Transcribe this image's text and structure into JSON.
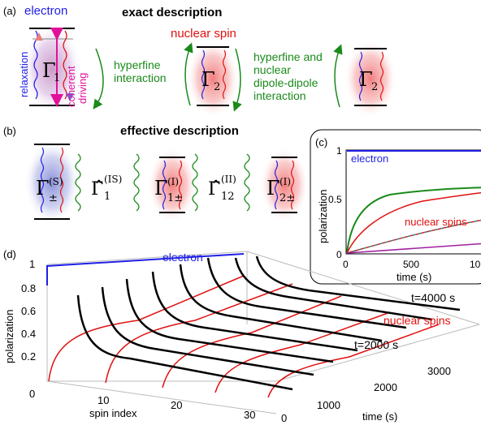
{
  "panel_a": {
    "tag": "(a)",
    "title": "exact description",
    "electron_label": "electron",
    "nuclear_spin_label": "nuclear spin",
    "relaxation_label": "relaxation",
    "coherent_driving_label_1": "coherent",
    "coherent_driving_label_2": "driving",
    "gamma_1": "Γ",
    "gamma_1_sub": "1",
    "gamma_2a": "Γ",
    "gamma_2a_sub": "2",
    "gamma_2b": "Γ",
    "gamma_2b_sub": "2",
    "hyperfine_1": "hyperfine",
    "hyperfine_2": "interaction",
    "hfd_1": "hyperfine and",
    "hfd_2": "nuclear",
    "hfd_3": "dipole-dipole",
    "hfd_4": "interaction"
  },
  "panel_b": {
    "tag": "(b)",
    "title": "effective description",
    "gamma_s": "Γ",
    "gamma_s_sub": "±",
    "gamma_s_sup": "(S)",
    "gamma_is": "Γ̂",
    "gamma_is_sub": "1",
    "gamma_is_sup": "(IS)",
    "gamma_1i": "Γ",
    "gamma_1i_sub": "1±",
    "gamma_1i_sup": "(I)",
    "gamma_ii": "Γ̂",
    "gamma_ii_sub": "12",
    "gamma_ii_sup": "(II)",
    "gamma_2i": "Γ",
    "gamma_2i_sub": "2±",
    "gamma_2i_sup": "(I)"
  },
  "panel_c": {
    "tag": "(c)",
    "ylabel": "polarization",
    "xlabel": "time (s)",
    "electron_label": "electron",
    "nuclear_label": "nuclear spins",
    "yticks": [
      "1",
      "0.5",
      "0"
    ],
    "xticks": [
      "0",
      "500",
      "10"
    ]
  },
  "panel_d": {
    "tag": "(d)",
    "ylabel": "polarization",
    "xlabel_index": "spin index",
    "xlabel_time": "time (s)",
    "electron_label": "electron",
    "nuclear_label": "nuclear spins",
    "t1_label": "t=4000 s",
    "t2_label": "t=2000 s",
    "zticks": [
      "1",
      "0.8",
      "0.6",
      "0.4",
      "0.2",
      "0"
    ],
    "index_ticks": [
      "0",
      "10",
      "20",
      "30"
    ],
    "time_ticks": [
      "0",
      "1000",
      "2000",
      "3000"
    ]
  },
  "colors": {
    "electron": "#1f1fe6",
    "nuclear": "#e01010",
    "hyperfine": "#1a8a1a",
    "driving": "#e0129a",
    "fit": "#00a0a0",
    "purple": "#a020a0"
  }
}
